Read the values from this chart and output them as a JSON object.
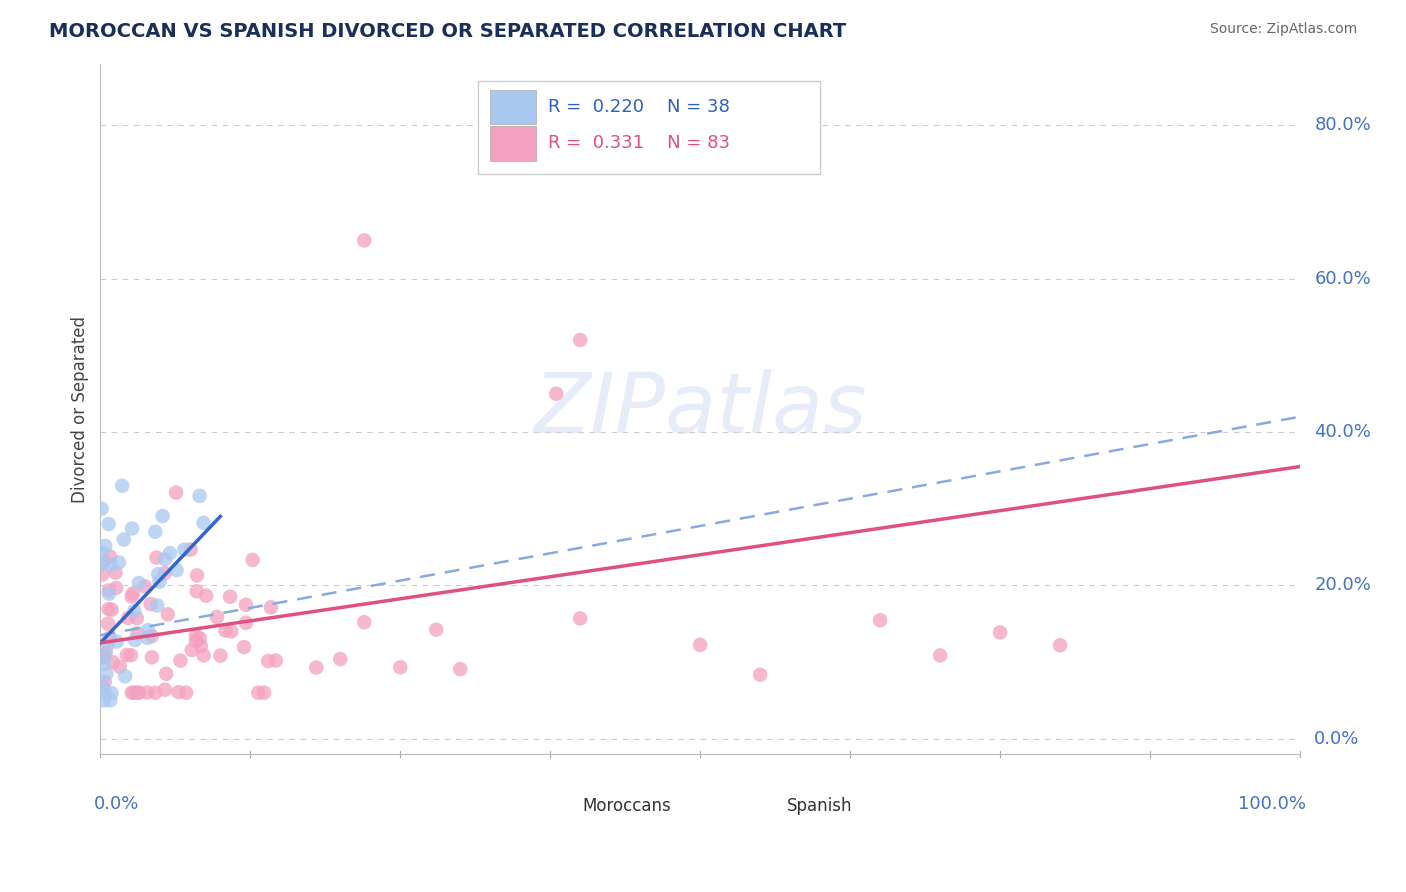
{
  "title": "MOROCCAN VS SPANISH DIVORCED OR SEPARATED CORRELATION CHART",
  "source": "Source: ZipAtlas.com",
  "ylabel": "Divorced or Separated",
  "yticks_labels": [
    "0.0%",
    "20.0%",
    "40.0%",
    "60.0%",
    "80.0%"
  ],
  "ytick_vals": [
    0.0,
    0.2,
    0.4,
    0.6,
    0.8
  ],
  "xlim": [
    0.0,
    1.0
  ],
  "ylim": [
    -0.02,
    0.88
  ],
  "moroccan_color": "#A8C8F0",
  "spanish_color": "#F4A0C0",
  "moroccan_line_color": "#3366CC",
  "spanish_line_color": "#E05080",
  "dash_line_color": "#88AADD",
  "grid_color": "#CCCCCC",
  "legend_moroccan_R": "R = 0.220",
  "legend_moroccan_N": "N = 38",
  "legend_spanish_R": "R = 0.331",
  "legend_spanish_N": "N = 83",
  "moroccan_line_x0": 0.0,
  "moroccan_line_x1": 0.1,
  "moroccan_line_y0": 0.125,
  "moroccan_line_y1": 0.29,
  "spanish_line_x0": 0.0,
  "spanish_line_x1": 1.0,
  "spanish_line_y0": 0.125,
  "spanish_line_y1": 0.355,
  "dash_line_x0": 0.0,
  "dash_line_x1": 1.0,
  "dash_line_y0": 0.135,
  "dash_line_y1": 0.42
}
